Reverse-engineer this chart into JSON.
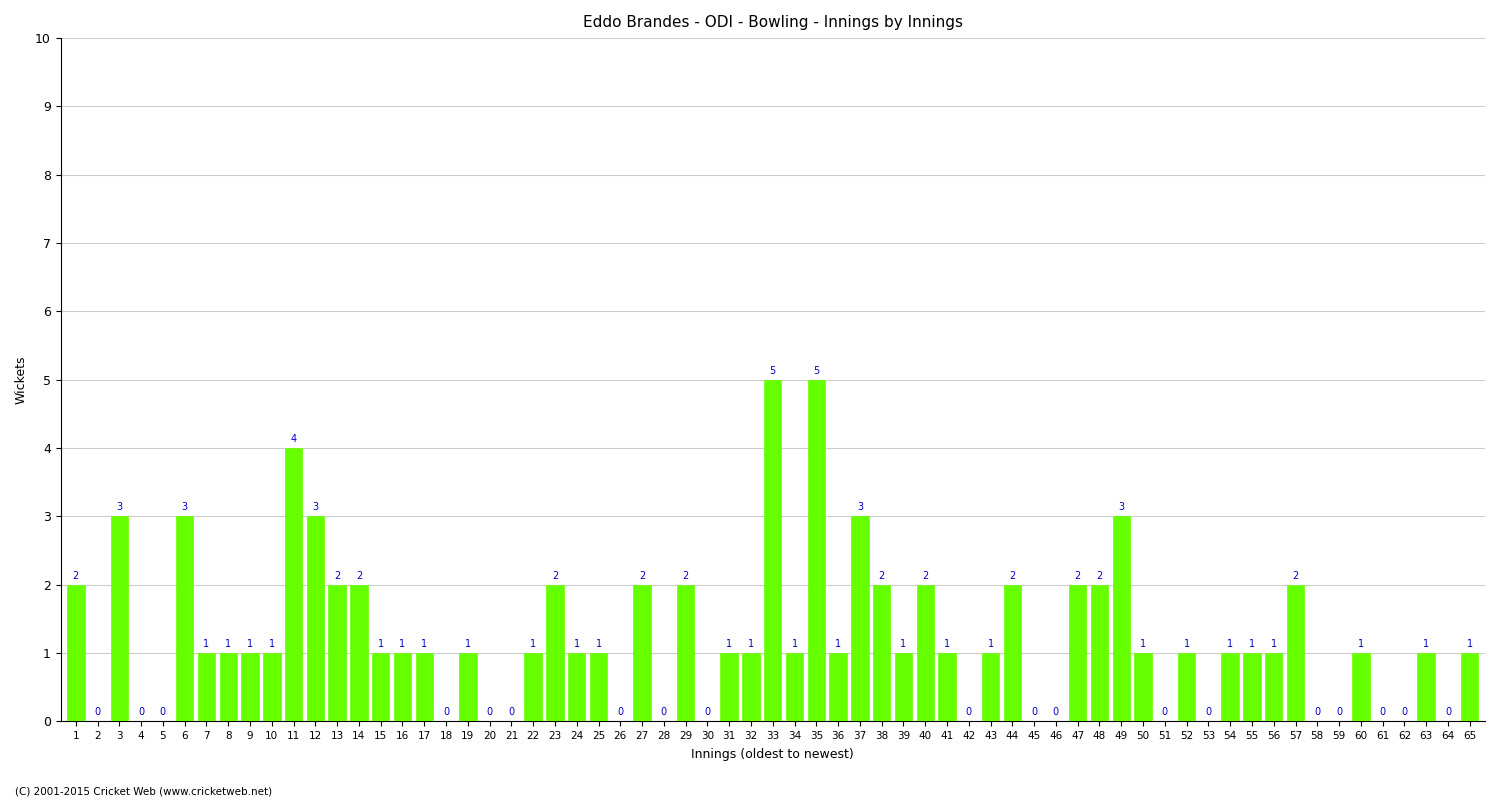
{
  "title": "Eddo Brandes - ODI - Bowling - Innings by Innings",
  "xlabel": "Innings (oldest to newest)",
  "ylabel": "Wickets",
  "ylim": [
    0,
    10
  ],
  "yticks": [
    0,
    1,
    2,
    3,
    4,
    5,
    6,
    7,
    8,
    9,
    10
  ],
  "bar_color": "#66ff00",
  "label_color": "#0000cc",
  "background_color": "#ffffff",
  "footer": "(C) 2001-2015 Cricket Web (www.cricketweb.net)",
  "innings": [
    "1",
    "2",
    "3",
    "4",
    "5",
    "6",
    "7",
    "8",
    "9",
    "10",
    "11",
    "12",
    "13",
    "14",
    "15",
    "16",
    "17",
    "18",
    "19",
    "20",
    "21",
    "22",
    "23",
    "24",
    "25",
    "26",
    "27",
    "28",
    "29",
    "30",
    "31",
    "32",
    "33",
    "34",
    "35",
    "36",
    "37",
    "38",
    "39",
    "40",
    "41",
    "42",
    "43",
    "44",
    "45",
    "46",
    "47",
    "48",
    "49",
    "50",
    "51",
    "52",
    "53",
    "54",
    "55",
    "56",
    "57",
    "58",
    "59",
    "60",
    "61",
    "62",
    "63",
    "64",
    "65"
  ],
  "wickets": [
    2,
    0,
    3,
    0,
    0,
    3,
    1,
    1,
    1,
    1,
    4,
    3,
    2,
    2,
    1,
    1,
    1,
    0,
    1,
    0,
    0,
    1,
    2,
    1,
    1,
    0,
    2,
    0,
    2,
    0,
    1,
    1,
    5,
    1,
    5,
    1,
    3,
    2,
    1,
    2,
    1,
    0,
    1,
    2,
    0,
    0,
    2,
    2,
    3,
    1,
    0,
    1,
    0,
    1,
    1,
    1,
    2,
    0,
    0,
    1,
    0,
    0,
    1,
    0,
    1
  ]
}
